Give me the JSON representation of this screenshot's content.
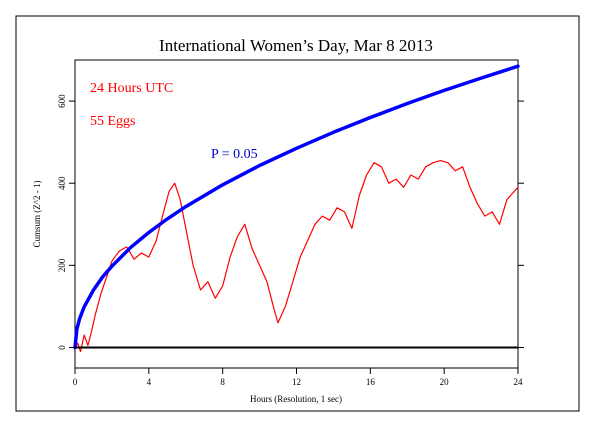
{
  "chart_data": {
    "type": "line",
    "title": "International Women’s Day, Mar 8 2013",
    "xlabel": "Hours (Resolution, 1 sec)",
    "ylabel": "Cumsum (Z^2 - 1)",
    "xlim": [
      0,
      24
    ],
    "ylim": [
      -50,
      700
    ],
    "x_ticks": [
      0,
      4,
      8,
      12,
      16,
      20,
      24
    ],
    "x_tick_labels": [
      "0",
      "4",
      "8",
      "12",
      "16",
      "20",
      "24"
    ],
    "y_ticks": [
      0,
      200,
      400,
      600
    ],
    "y_tick_labels": [
      "0",
      "200",
      "400",
      "600"
    ],
    "annotations": [
      "24 Hours UTC",
      "55 Eggs",
      "P = 0.05"
    ],
    "colors": {
      "cumsum": "#ff0000",
      "envelope": "#0000ff",
      "baseline": "#000000",
      "annotation_red": "#ff0000",
      "annotation_blue": "#0000cc"
    },
    "series": [
      {
        "values_x": [
          0,
          0.15,
          0.3,
          0.5,
          0.7,
          0.9,
          1.1,
          1.4,
          1.7,
          2.0,
          2.4,
          2.8,
          3.2,
          3.6,
          4.0,
          4.4,
          4.8,
          5.1,
          5.4,
          5.7,
          6.0,
          6.4,
          6.8,
          7.2,
          7.6,
          8.0,
          8.4,
          8.8,
          9.2,
          9.6,
          10.0,
          10.4,
          10.8,
          11.0,
          11.4,
          11.8,
          12.2,
          12.6,
          13.0,
          13.4,
          13.8,
          14.2,
          14.6,
          15.0,
          15.4,
          15.8,
          16.2,
          16.6,
          17.0,
          17.4,
          17.8,
          18.2,
          18.6,
          19.0,
          19.4,
          19.8,
          20.2,
          20.6,
          21.0,
          21.4,
          21.8,
          22.2,
          22.6,
          23.0,
          23.4,
          23.8,
          24.0
        ],
        "values": [
          0,
          10,
          -10,
          30,
          5,
          40,
          80,
          130,
          170,
          210,
          235,
          245,
          215,
          230,
          220,
          260,
          330,
          380,
          400,
          360,
          290,
          200,
          140,
          160,
          120,
          150,
          220,
          270,
          300,
          240,
          200,
          160,
          90,
          60,
          100,
          160,
          220,
          260,
          300,
          320,
          310,
          340,
          330,
          290,
          370,
          420,
          450,
          440,
          400,
          410,
          390,
          420,
          410,
          440,
          450,
          455,
          450,
          430,
          440,
          390,
          350,
          320,
          330,
          300,
          360,
          380,
          390
        ]
      },
      {
        "values_x": [
          0,
          0.1,
          0.25,
          0.5,
          1,
          1.5,
          2,
          3,
          4,
          5,
          6,
          8,
          10,
          12,
          14,
          16,
          18,
          20,
          22,
          24
        ],
        "values": [
          0,
          44,
          70,
          99,
          140,
          172,
          198,
          243,
          280,
          313,
          343,
          396,
          443,
          485,
          524,
          560,
          594,
          626,
          656,
          685
        ]
      },
      {
        "values_x": [
          0,
          24
        ],
        "values": [
          0,
          0
        ]
      }
    ]
  }
}
